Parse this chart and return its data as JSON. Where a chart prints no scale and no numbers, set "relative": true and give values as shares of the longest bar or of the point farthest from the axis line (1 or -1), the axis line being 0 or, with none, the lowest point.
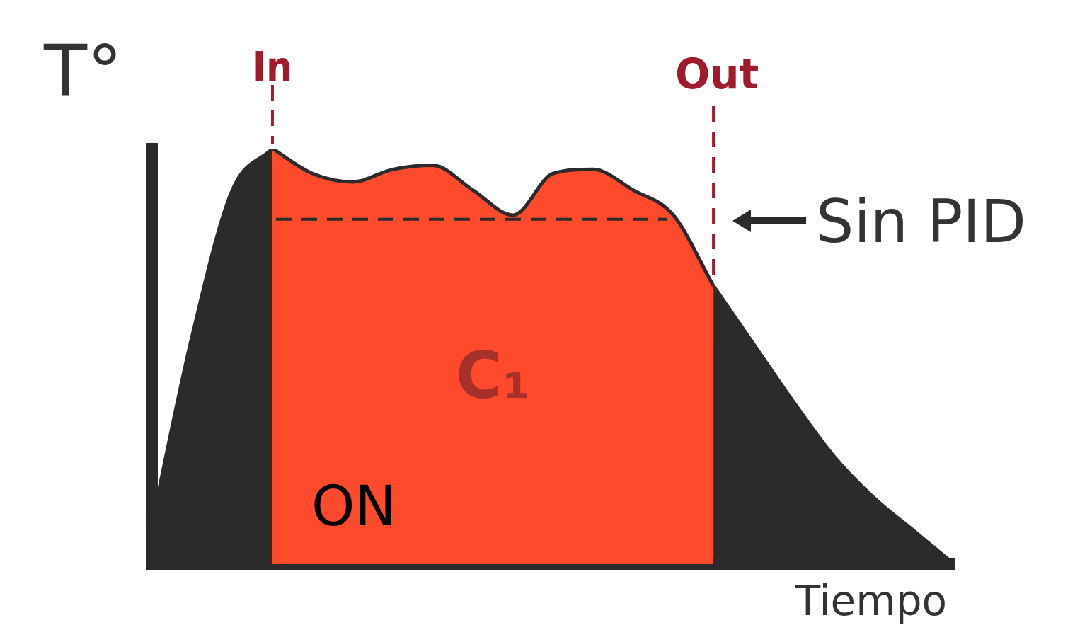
{
  "chart_data": {
    "type": "area",
    "relative": true,
    "xlabel": "Tiempo",
    "ylabel": "T°",
    "categories": [
      null,
      null,
      null,
      null,
      null,
      null,
      null,
      null,
      null,
      null,
      null,
      null,
      null,
      null,
      null,
      null,
      null,
      null,
      null,
      null,
      null
    ],
    "series": [
      {
        "color": "#2b2b2b",
        "values": [
          0.1,
          0.55,
          0.9,
          1.0,
          null,
          null,
          null,
          null,
          null,
          null,
          null,
          null,
          null,
          null,
          0.67,
          0.53,
          0.39,
          0.26,
          0.16,
          0.08,
          0
        ]
      },
      {
        "color": "#ff4b2b",
        "values": [
          null,
          null,
          null,
          1.0,
          0.94,
          0.92,
          0.95,
          0.96,
          0.9,
          0.84,
          0.94,
          0.95,
          0.9,
          0.84,
          0.67,
          null,
          null,
          null,
          null,
          null,
          null
        ]
      }
    ],
    "ref_lines": [
      {
        "axis": "y",
        "value": 0.83,
        "color": "#2b2b2b",
        "line_style": "dashed"
      }
    ],
    "annotations": [
      "In",
      "Out",
      "C₁",
      "ON",
      "Sin PID"
    ],
    "legend": false,
    "grid": false
  }
}
